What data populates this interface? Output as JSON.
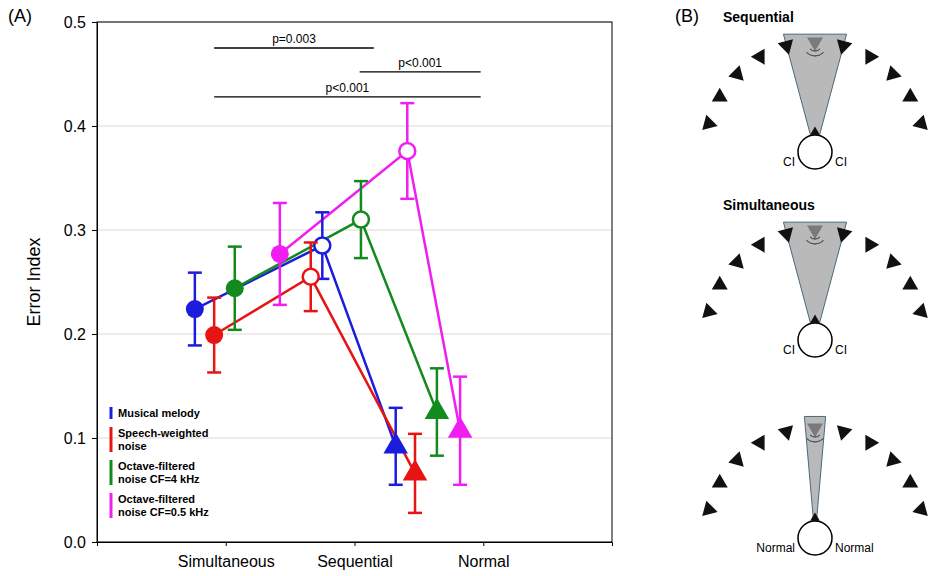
{
  "chart_data": {
    "type": "line",
    "xlim": [
      0,
      4
    ],
    "xticks": [
      {
        "value": 1,
        "label": "Simultaneous"
      },
      {
        "value": 2,
        "label": "Sequential"
      },
      {
        "value": 3,
        "label": "Normal"
      }
    ],
    "ylim": [
      0,
      0.5
    ],
    "yticks": [
      {
        "value": 0,
        "label": "0.0"
      },
      0.1,
      0.2,
      0.3,
      0.4,
      0.5
    ],
    "y_label": "Error Index",
    "grid": true,
    "legend": "lower left",
    "series": [
      {
        "name": "Musical melody",
        "color": "#1c1cdc",
        "x": [
          0.76,
          1.75,
          2.32
        ],
        "values": [
          0.224,
          0.285,
          0.092
        ],
        "errors": [
          0.035,
          0.032,
          0.037
        ]
      },
      {
        "name": "Speech-weighted noise",
        "color": "#e81414",
        "x": [
          0.91,
          1.66,
          2.47
        ],
        "values": [
          0.199,
          0.255,
          0.066
        ],
        "errors": [
          0.036,
          0.033,
          0.038
        ]
      },
      {
        "name": "Octave-filtered noise CF=4 kHz",
        "color": "#128a1e",
        "x": [
          1.07,
          2.05,
          2.64
        ],
        "values": [
          0.244,
          0.31,
          0.125
        ],
        "errors": [
          0.04,
          0.037,
          0.042
        ]
      },
      {
        "name": "Octave-filtered noise CF=0.5 kHz",
        "color": "#f01ef0",
        "x": [
          1.42,
          2.41,
          2.82
        ],
        "values": [
          0.277,
          0.376,
          0.107
        ],
        "errors": [
          0.049,
          0.046,
          0.052
        ]
      }
    ],
    "annotations": [
      {
        "label": "p=0.003",
        "x": [
          0.91,
          2.15
        ],
        "y": 0.475
      },
      {
        "label": "p<0.001",
        "x": [
          2.04,
          2.98
        ],
        "y": 0.452
      },
      {
        "label": "p<0.001",
        "x": [
          0.91,
          2.98
        ],
        "y": 0.428
      }
    ]
  },
  "panel_labels": [
    "(A)",
    "(B)"
  ],
  "diagram": {
    "rows": [
      {
        "title": "Sequential",
        "ears": [
          "CI",
          "CI"
        ]
      },
      {
        "title": "Simultaneous",
        "ears": [
          "CI",
          "CI"
        ]
      },
      {
        "ears": [
          "Normal",
          "Normal"
        ]
      }
    ]
  }
}
